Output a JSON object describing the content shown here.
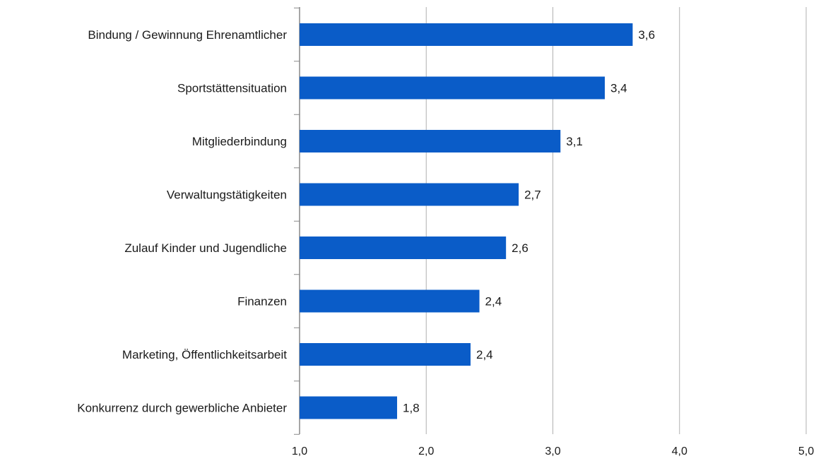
{
  "chart_data": {
    "type": "bar",
    "orientation": "horizontal",
    "categories": [
      "Bindung / Gewinnung Ehrenamtlicher",
      "Sportstättensituation",
      "Mitgliederbindung",
      "Verwaltungstätigkeiten",
      "Zulauf Kinder und Jugendliche",
      "Finanzen",
      "Marketing, Öffentlichkeitsarbeit",
      "Konkurrenz durch gewerbliche Anbieter"
    ],
    "values": [
      3.63,
      3.41,
      3.06,
      2.73,
      2.63,
      2.42,
      2.35,
      1.77
    ],
    "value_labels": [
      "3,6",
      "3,4",
      "3,1",
      "2,7",
      "2,6",
      "2,4",
      "2,4",
      "1,8"
    ],
    "xlim": [
      1.0,
      5.0
    ],
    "x_ticks": [
      1.0,
      2.0,
      3.0,
      4.0,
      5.0
    ],
    "x_tick_labels": [
      "1,0",
      "2,0",
      "3,0",
      "4,0",
      "5,0"
    ],
    "title": "",
    "xlabel": "",
    "ylabel": "",
    "grid": "vertical",
    "legend": "none",
    "bar_color": "#0a5cc8",
    "grid_color": "#b0b0b0",
    "axis_color": "#888888"
  }
}
